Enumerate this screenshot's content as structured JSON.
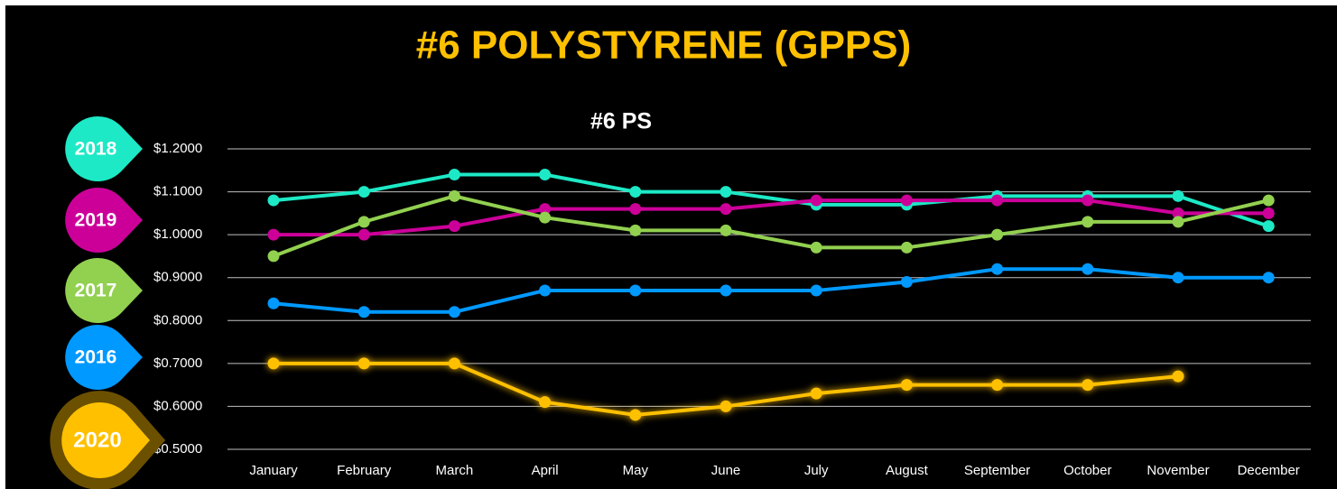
{
  "chart_data": {
    "type": "line",
    "title": "#6 POLYSTYRENE (GPPS)",
    "subtitle": "#6 PS",
    "categories": [
      "January",
      "February",
      "March",
      "April",
      "May",
      "June",
      "July",
      "August",
      "September",
      "October",
      "November",
      "December"
    ],
    "series": [
      {
        "name": "2018",
        "color": "#1de9c6",
        "values": [
          1.08,
          1.1,
          1.14,
          1.14,
          1.1,
          1.1,
          1.07,
          1.07,
          1.09,
          1.09,
          1.09,
          1.02
        ]
      },
      {
        "name": "2019",
        "color": "#cc0099",
        "values": [
          1.0,
          1.0,
          1.02,
          1.06,
          1.06,
          1.06,
          1.08,
          1.08,
          1.08,
          1.08,
          1.05,
          1.05
        ]
      },
      {
        "name": "2017",
        "color": "#92d050",
        "values": [
          0.95,
          1.03,
          1.09,
          1.04,
          1.01,
          1.01,
          0.97,
          0.97,
          1.0,
          1.03,
          1.03,
          1.08
        ]
      },
      {
        "name": "2016",
        "color": "#0099ff",
        "values": [
          0.84,
          0.82,
          0.82,
          0.87,
          0.87,
          0.87,
          0.87,
          0.89,
          0.92,
          0.92,
          0.9,
          0.9
        ]
      },
      {
        "name": "2020",
        "color": "#ffc000",
        "values": [
          0.7,
          0.7,
          0.7,
          0.61,
          0.58,
          0.6,
          0.63,
          0.65,
          0.65,
          0.65,
          0.67,
          null
        ]
      }
    ],
    "ylim": [
      0.5,
      1.2
    ],
    "yticks": [
      {
        "value": 0.5,
        "label": "$0.5000"
      },
      {
        "value": 0.6,
        "label": "$0.6000"
      },
      {
        "value": 0.7,
        "label": "$0.7000"
      },
      {
        "value": 0.8,
        "label": "$0.8000"
      },
      {
        "value": 0.9,
        "label": "$0.9000"
      },
      {
        "value": 1.0,
        "label": "$1.0000"
      },
      {
        "value": 1.1,
        "label": "$1.1000"
      },
      {
        "value": 1.2,
        "label": "$1.2000"
      }
    ],
    "grid": true
  }
}
